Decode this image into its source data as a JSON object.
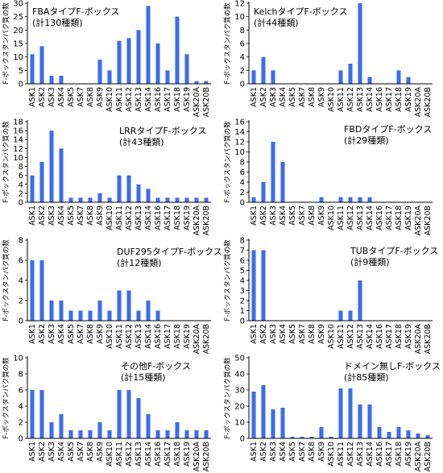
{
  "chart_data": [
    {
      "type": "bar",
      "title": "FBAタイプF-ボックス",
      "subtitle": "(計130種類)",
      "ylabel": "F-ボックスタンパク質の数",
      "categories": [
        "ASK1",
        "ASK2",
        "ASK3",
        "ASK4",
        "ASK5",
        "ASK7",
        "ASK8",
        "ASK9",
        "ASK10",
        "ASK11",
        "ASK12",
        "ASK13",
        "ASK14",
        "ASK16",
        "ASK17",
        "ASK18",
        "ASK19",
        "ASK20A",
        "ASK20B"
      ],
      "values": [
        11,
        14,
        3,
        3,
        0,
        0,
        0,
        9,
        5,
        16,
        17,
        20,
        29,
        15,
        5,
        25,
        11,
        1,
        1
      ],
      "ylim": [
        0,
        30
      ],
      "ytick_step": 5,
      "color": "#3b6cf0"
    },
    {
      "type": "bar",
      "title": "KelchタイプF-ボックス",
      "subtitle": "(計44種類)",
      "ylabel": "F-ボックスタンパク質の数",
      "categories": [
        "ASK1",
        "ASK2",
        "ASK3",
        "ASK4",
        "ASK5",
        "ASK7",
        "ASK8",
        "ASK9",
        "ASK10",
        "ASK11",
        "ASK12",
        "ASK13",
        "ASK14",
        "ASK16",
        "ASK17",
        "ASK18",
        "ASK19",
        "ASK20A",
        "ASK20B"
      ],
      "values": [
        2,
        4,
        2,
        0,
        0,
        0,
        0,
        0,
        0,
        2,
        3,
        12,
        1,
        0,
        0,
        2,
        1,
        0,
        0
      ],
      "ylim": [
        0,
        12
      ],
      "ytick_step": 2,
      "color": "#3b6cf0"
    },
    {
      "type": "bar",
      "title": "LRRタイプF-ボックス",
      "subtitle": "(計43種類)",
      "ylabel": "F-ボックスタンパク質の数",
      "categories": [
        "ASK1",
        "ASK2",
        "ASK3",
        "ASK4",
        "ASK5",
        "ASK7",
        "ASK8",
        "ASK9",
        "ASK10",
        "ASK11",
        "ASK12",
        "ASK13",
        "ASK14",
        "ASK16",
        "ASK17",
        "ASK18",
        "ASK19",
        "ASK20A",
        "ASK20B"
      ],
      "values": [
        6,
        9,
        16,
        12,
        1,
        1,
        1,
        2,
        1,
        6,
        6,
        4,
        3,
        1,
        1,
        1,
        1,
        1,
        1
      ],
      "ylim": [
        0,
        18
      ],
      "ytick_step": 2,
      "color": "#3b6cf0"
    },
    {
      "type": "bar",
      "title": "FBDタイプF-ボックス",
      "subtitle": "(計29種類)",
      "ylabel": "F-ボックスタンパク質の数",
      "categories": [
        "ASK1",
        "ASK2",
        "ASK3",
        "ASK4",
        "ASK5",
        "ASK7",
        "ASK8",
        "ASK9",
        "ASK10",
        "ASK11",
        "ASK12",
        "ASK13",
        "ASK14",
        "ASK16",
        "ASK17",
        "ASK18",
        "ASK19",
        "ASK20A",
        "ASK20B"
      ],
      "values": [
        1,
        4,
        12,
        8,
        0,
        0,
        0,
        1,
        0,
        1,
        1,
        1,
        1,
        0,
        0,
        0,
        0,
        0,
        0
      ],
      "ylim": [
        0,
        16
      ],
      "ytick_step": 2,
      "color": "#3b6cf0"
    },
    {
      "type": "bar",
      "title": "DUF295タイプF-ボックス",
      "subtitle": "(計12種類)",
      "ylabel": "F-ボックスタンパク質の数",
      "categories": [
        "ASK1",
        "ASK2",
        "ASK3",
        "ASK4",
        "ASK5",
        "ASK7",
        "ASK8",
        "ASK9",
        "ASK10",
        "ASK11",
        "ASK12",
        "ASK13",
        "ASK14",
        "ASK16",
        "ASK17",
        "ASK18",
        "ASK19",
        "ASK20A",
        "ASK20B"
      ],
      "values": [
        6,
        6,
        2,
        2,
        1,
        1,
        1,
        2,
        1,
        3,
        3,
        1,
        2,
        1,
        0,
        0,
        0,
        0,
        0
      ],
      "ylim": [
        0,
        8
      ],
      "ytick_step": 2,
      "color": "#3b6cf0"
    },
    {
      "type": "bar",
      "title": "TUBタイプF-ボックス",
      "subtitle": "(計9種類)",
      "ylabel": "F-ボックスタンパク質の数",
      "categories": [
        "ASK1",
        "ASK2",
        "ASK3",
        "ASK4",
        "ASK5",
        "ASK7",
        "ASK8",
        "ASK9",
        "ASK10",
        "ASK11",
        "ASK12",
        "ASK13",
        "ASK14",
        "ASK16",
        "ASK17",
        "ASK18",
        "ASK19",
        "ASK20A",
        "ASK20B"
      ],
      "values": [
        7,
        7,
        0,
        0,
        0,
        0,
        0,
        0,
        0,
        1,
        1,
        4,
        0,
        0,
        0,
        0,
        0,
        0,
        0
      ],
      "ylim": [
        0,
        8
      ],
      "ytick_step": 1,
      "color": "#3b6cf0"
    },
    {
      "type": "bar",
      "title": "その他F-ボックス",
      "subtitle": "(計15種類)",
      "ylabel": "F-ボックスタンパク質の数",
      "categories": [
        "ASK1",
        "ASK2",
        "ASK3",
        "ASK4",
        "ASK5",
        "ASK7",
        "ASK8",
        "ASK9",
        "ASK10",
        "ASK11",
        "ASK12",
        "ASK13",
        "ASK14",
        "ASK16",
        "ASK17",
        "ASK18",
        "ASK19",
        "ASK20A",
        "ASK20B"
      ],
      "values": [
        6,
        6,
        2,
        3,
        1,
        1,
        1,
        2,
        1,
        6,
        6,
        5,
        3,
        1,
        1,
        2,
        1,
        1,
        1
      ],
      "ylim": [
        0,
        10
      ],
      "ytick_step": 2,
      "color": "#3b6cf0"
    },
    {
      "type": "bar",
      "title": "ドメイン無しF-ボックス",
      "subtitle": "(計85種類)",
      "ylabel": "F-ボックスタンパク質の数",
      "categories": [
        "ASK1",
        "ASK2",
        "ASK3",
        "ASK4",
        "ASK5",
        "ASK7",
        "ASK8",
        "ASK9",
        "ASK10",
        "ASK11",
        "ASK12",
        "ASK13",
        "ASK14",
        "ASK16",
        "ASK17",
        "ASK18",
        "ASK19",
        "ASK20A",
        "ASK20B"
      ],
      "values": [
        29,
        33,
        18,
        19,
        1,
        1,
        1,
        7,
        1,
        31,
        31,
        21,
        21,
        7,
        4,
        7,
        5,
        3,
        2
      ],
      "ylim": [
        0,
        50
      ],
      "ytick_step": 10,
      "color": "#3b6cf0"
    }
  ]
}
